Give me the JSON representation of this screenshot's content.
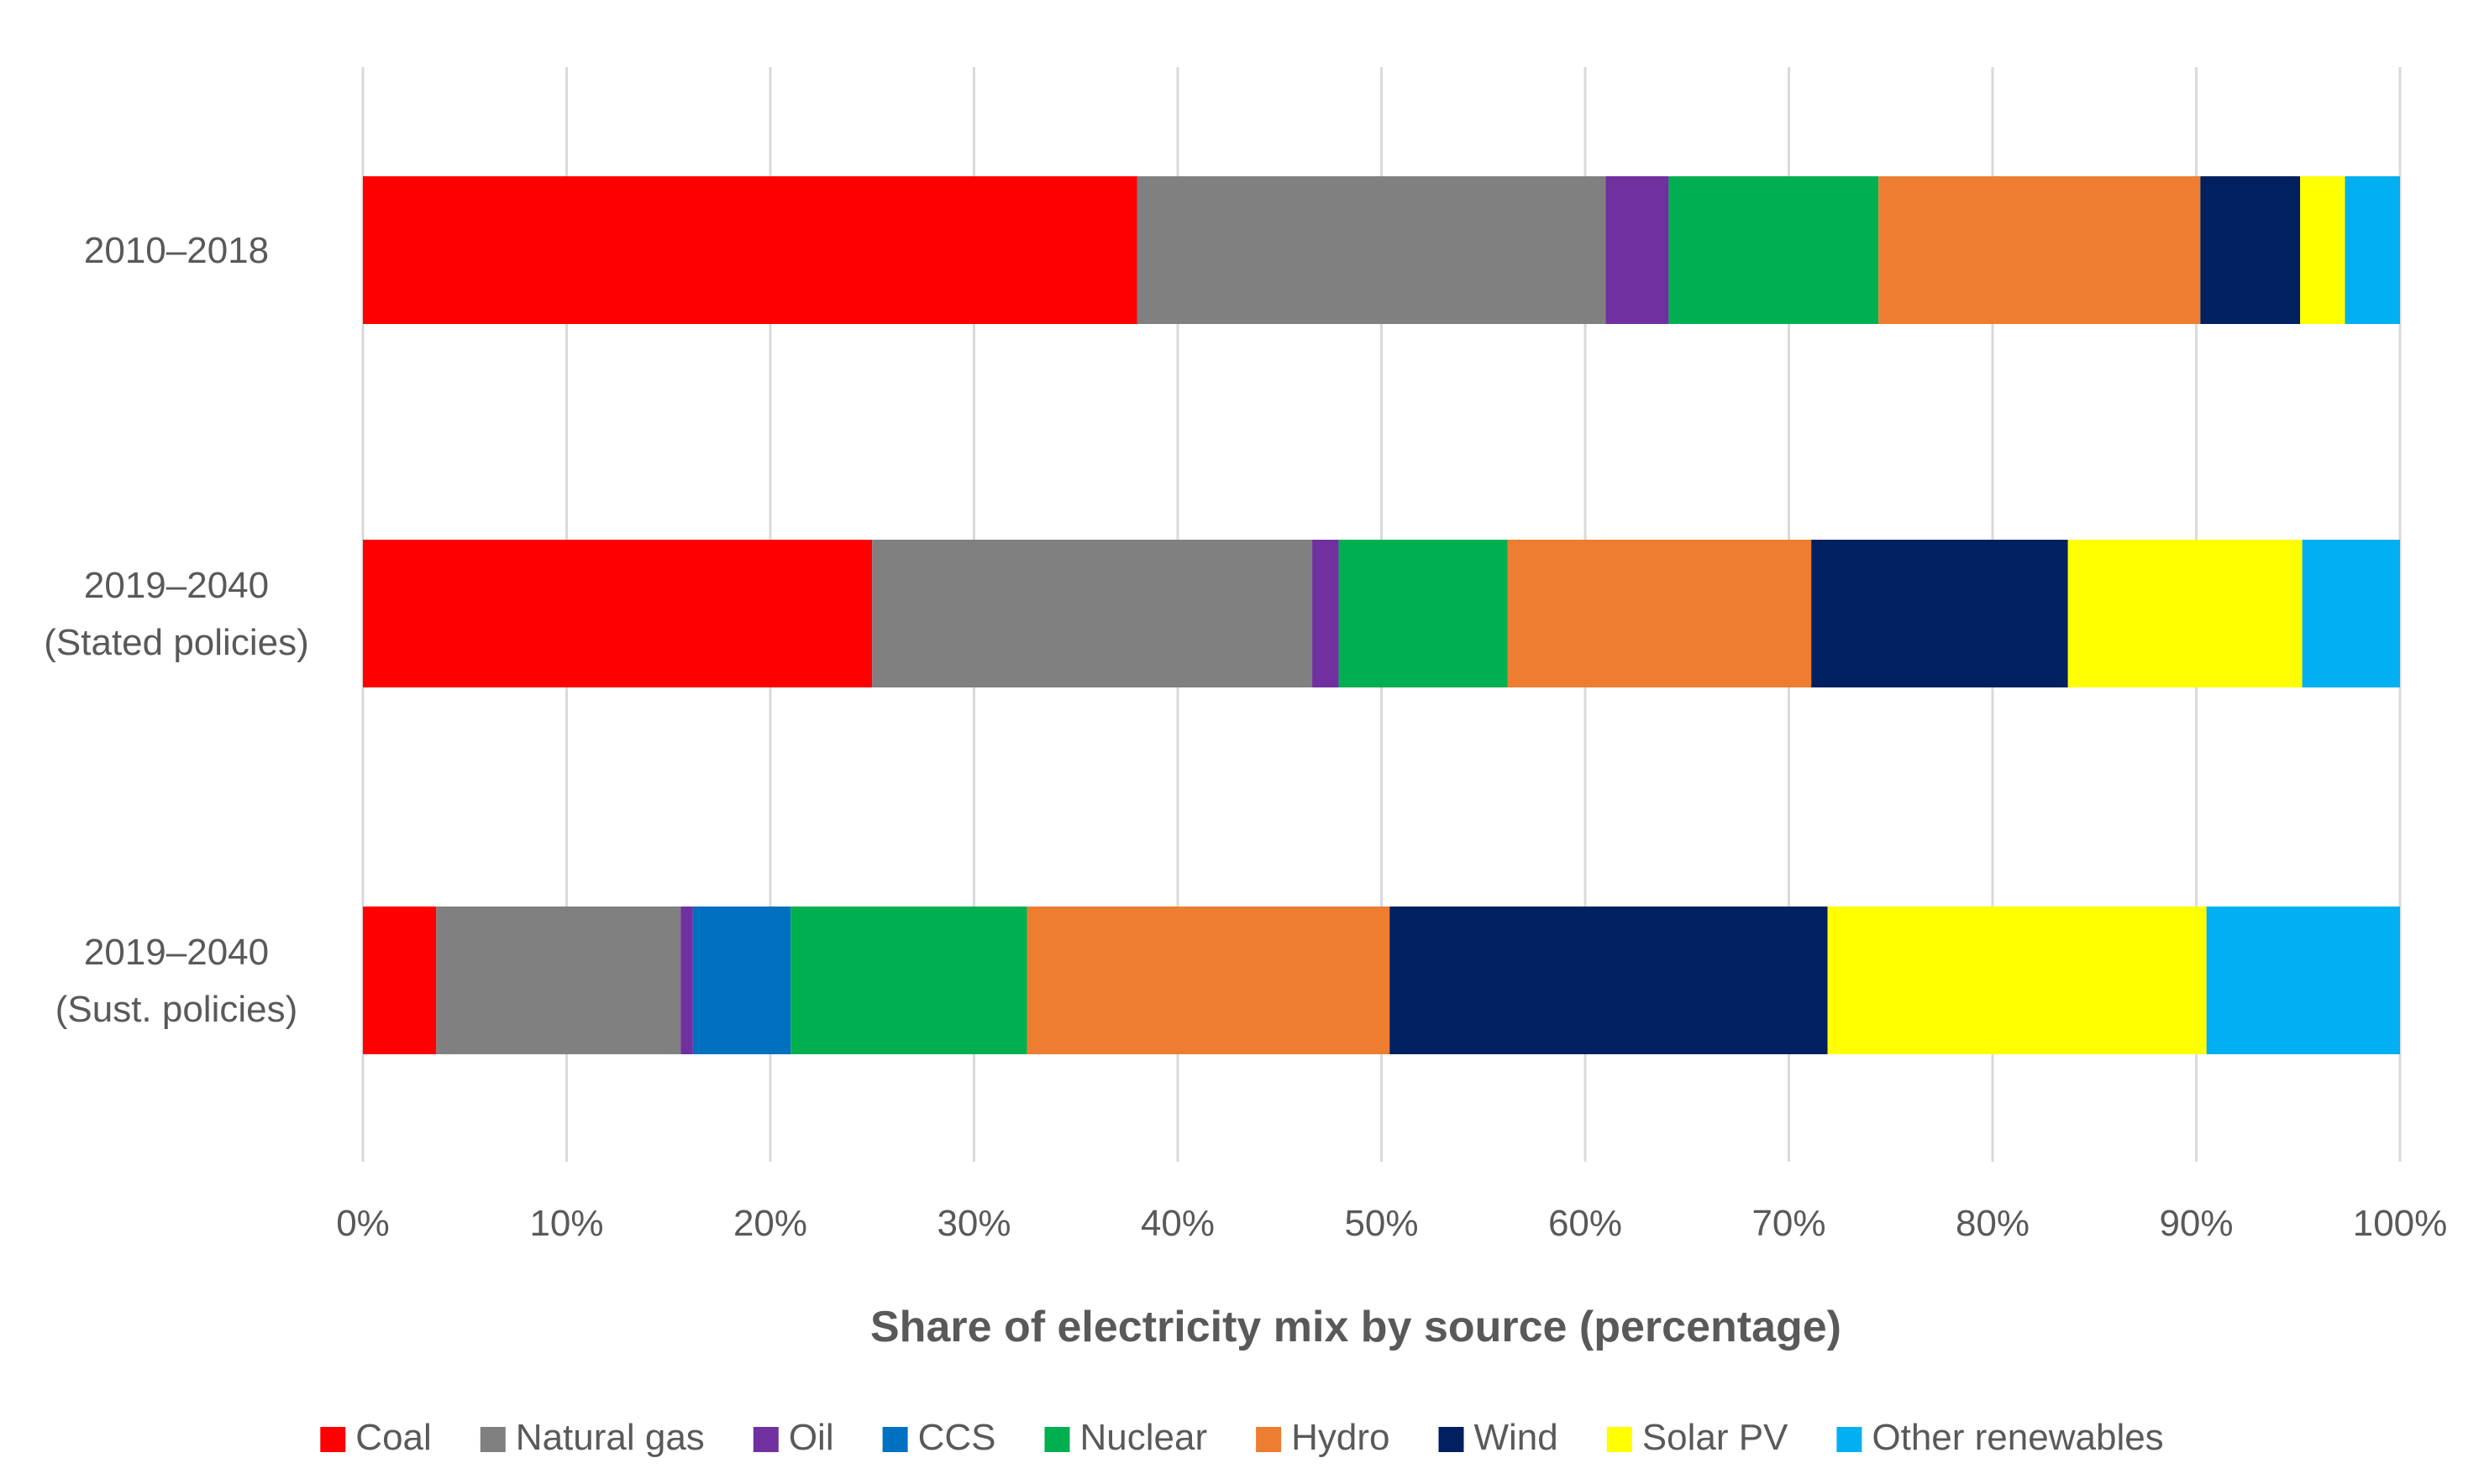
{
  "chart_data": {
    "type": "bar",
    "orientation": "horizontal",
    "stacked": true,
    "title": "",
    "xlabel": "Share of electricity mix by source (percentage)",
    "ylabel": "",
    "xlim": [
      0,
      100
    ],
    "x_ticks": [
      0,
      10,
      20,
      30,
      40,
      50,
      60,
      70,
      80,
      90,
      100
    ],
    "x_tick_labels": [
      "0%",
      "10%",
      "20%",
      "30%",
      "40%",
      "50%",
      "60%",
      "70%",
      "80%",
      "90%",
      "100%"
    ],
    "grid": true,
    "legend_position": "bottom",
    "categories": [
      [
        "2010–2018"
      ],
      [
        "2019–2040",
        "(Stated policies)"
      ],
      [
        "2019–2040",
        "(Sust. policies)"
      ]
    ],
    "series": [
      {
        "name": "Coal",
        "color": "#FF0000",
        "values": [
          38.0,
          25.0,
          3.6
        ]
      },
      {
        "name": "Natural gas",
        "color": "#808080",
        "values": [
          23.0,
          21.6,
          12.0
        ]
      },
      {
        "name": "Oil",
        "color": "#7030A0",
        "values": [
          3.1,
          1.3,
          0.6
        ]
      },
      {
        "name": "CCS",
        "color": "#0070C0",
        "values": [
          0.0,
          0.0,
          4.8
        ]
      },
      {
        "name": "Nuclear",
        "color": "#00B050",
        "values": [
          10.3,
          8.3,
          11.6
        ]
      },
      {
        "name": "Hydro",
        "color": "#ED7D31",
        "values": [
          15.8,
          14.9,
          17.8
        ]
      },
      {
        "name": "Wind",
        "color": "#002060",
        "values": [
          4.9,
          12.6,
          21.5
        ]
      },
      {
        "name": "Solar PV",
        "color": "#FFFF00",
        "values": [
          2.2,
          11.5,
          18.6
        ]
      },
      {
        "name": "Other renewables",
        "color": "#00B0F0",
        "values": [
          2.7,
          4.8,
          9.5
        ]
      }
    ]
  }
}
